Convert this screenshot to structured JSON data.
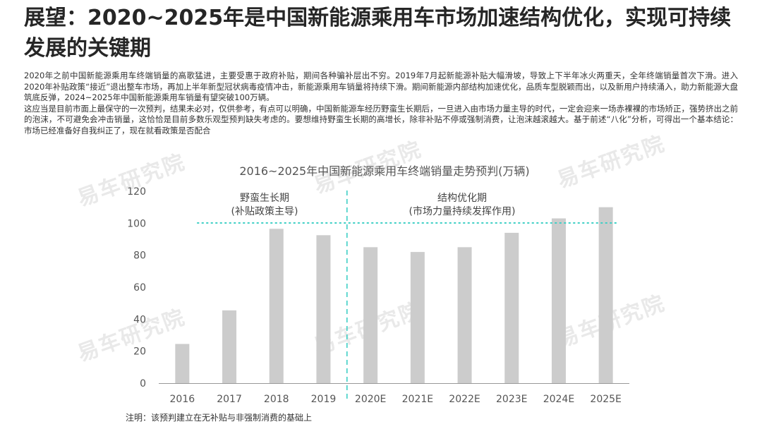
{
  "title": "展望：2020~2025年是中国新能源乘用车市场加速结构优化，实现可持续发展的关键期",
  "paragraphs": [
    "2020年之前中国新能源乘用车终端销量的高歌猛进，主要受惠于政府补贴，期间各种骗补层出不穷。2019年7月起新能源补贴大幅滑坡，导致上下半年冰火两重天，全年终端销量首次下滑。进入2020年补贴政策“接近”退出整车市场，再加上半年新型冠状病毒疫情冲击，新能源乘用车销量将持续下滑。期间新能源内部结构加速优化，品质车型脱颖而出，以及新用户持续涌入，助力新能源大盘筑底反弹，2024~2025年中国新能源乘用车销量有望突破100万辆。",
    "这应当是目前市面上最保守的一次预判，结果未必对，仅供参考，有点可以明确，中国新能源车经历野蛮生长期后，一旦进入由市场力量主导的时代，一定会迎来一场赤裸裸的市场矫正，强势挤出之前的泡沫，不可避免会冲击销量，这恰恰是目前多数乐观型预判缺失考虑的。要想维持野蛮生长期的高增长，除非补贴不停或强制消费，让泡沫越滚越大。基于前述“八化”分析，可得出一个基本结论：市场已经准备好自我纠正了，现在就看政策是否配合"
  ],
  "watermark": "易车研究院",
  "footnote": "注明：该预判建立在无补贴与非强制消费的基础上",
  "colors": {
    "bar": "#cccccc",
    "divider": "#3ecfc5",
    "axis": "#999999",
    "text": "#555555",
    "watermark": "#e9e9e9"
  },
  "chart_data": {
    "type": "bar",
    "title": "2016~2025年中国新能源乘用车终端销量走势预判(万辆)",
    "categories": [
      "2016",
      "2017",
      "2018",
      "2019",
      "2020E",
      "2021E",
      "2022E",
      "2023E",
      "2024E",
      "2025E"
    ],
    "values": [
      24.5,
      45.5,
      96.5,
      92.5,
      85,
      82,
      85,
      94,
      103,
      110
    ],
    "ylim": [
      0,
      120
    ],
    "yticks": [
      0,
      20,
      40,
      60,
      80,
      100,
      120
    ],
    "grid": false,
    "phase_split_after_index": 3,
    "phases": [
      {
        "line1": "野蛮生长期",
        "line2": "(补贴政策主导)"
      },
      {
        "line1": "结构优化期",
        "line2": "(市场力量持续发挥作用)"
      }
    ]
  }
}
